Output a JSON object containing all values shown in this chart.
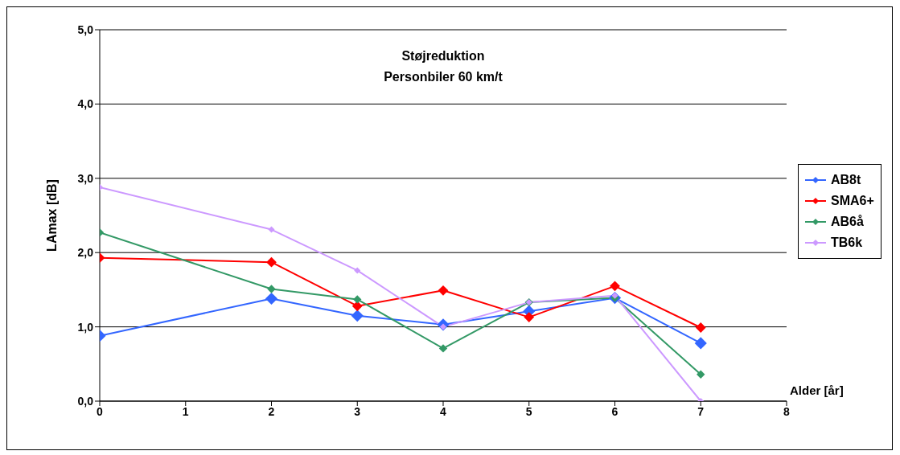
{
  "chart_data": {
    "type": "line",
    "title": "Støjreduktion",
    "subtitle": "Personbiler 60 km/t",
    "xlabel": "Alder [år]",
    "ylabel": "LAmax [dB]",
    "x": [
      0,
      2,
      3,
      4,
      5,
      6,
      7
    ],
    "series": [
      {
        "name": "AB8t",
        "color": "#3366ff",
        "values": [
          0.88,
          1.38,
          1.15,
          1.03,
          1.21,
          1.39,
          0.78
        ]
      },
      {
        "name": "SMA6+",
        "color": "#ff0000",
        "values": [
          1.93,
          1.87,
          1.28,
          1.49,
          1.13,
          1.55,
          0.99
        ]
      },
      {
        "name": "AB6å",
        "color": "#339966",
        "values": [
          2.27,
          1.51,
          1.37,
          0.71,
          1.33,
          1.39,
          0.36
        ]
      },
      {
        "name": "TB6k",
        "color": "#cc99ff",
        "values": [
          2.88,
          2.31,
          1.76,
          1.0,
          1.33,
          1.42,
          0.0
        ]
      }
    ],
    "xlim": [
      0,
      8
    ],
    "xticks": [
      0,
      1,
      2,
      3,
      4,
      5,
      6,
      7,
      8
    ],
    "ylim": [
      0,
      5
    ],
    "yticks": [
      {
        "value": 0,
        "label": "0,0"
      },
      {
        "value": 1,
        "label": "1,0"
      },
      {
        "value": 2,
        "label": "2,0"
      },
      {
        "value": 3,
        "label": "3,0"
      },
      {
        "value": 4,
        "label": "4,0"
      },
      {
        "value": 5,
        "label": "5,0"
      }
    ],
    "grid": "y",
    "legend": "right",
    "marker": "diamond",
    "line_style": "solid"
  }
}
